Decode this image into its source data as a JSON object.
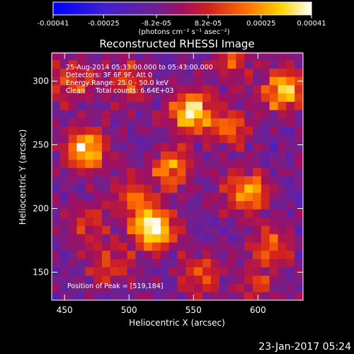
{
  "chart_data": {
    "type": "heatmap",
    "title": "Reconstructed RHESSI Image",
    "xlabel": "Heliocentric X (arcsec)",
    "ylabel": "Heliocentric Y (arcsec)",
    "xlim": [
      440,
      635
    ],
    "ylim": [
      128,
      322
    ],
    "x_ticks": [
      450,
      500,
      550,
      600
    ],
    "y_ticks": [
      150,
      200,
      250,
      300
    ],
    "colorbar": {
      "units": "(photons cm⁻² s⁻¹ asec⁻²)",
      "range": [
        -0.00041,
        0.00041
      ],
      "tick_values": [
        -0.00041,
        -0.00025,
        -8.2e-05,
        8.2e-05,
        0.00025,
        0.00041
      ],
      "tick_labels": [
        "-0.00041",
        "-0.00025",
        "-8.2e-05",
        "8.2e-05",
        "0.00025",
        "0.00041"
      ]
    },
    "annotations": [
      "25-Aug-2014 05:33:00.000 to 05:43:00.000",
      "Detectors: 3F 6F 9F, Att 0",
      "Energy Range: 25.0 - 50.0 keV",
      "Clean     Total counts: 6.64E+03"
    ],
    "peak_label": "Position of Peak = [519,184]",
    "sources": [
      {
        "x": 519,
        "y": 184,
        "value": 0.00041
      },
      {
        "x": 548,
        "y": 276,
        "value": 0.00039
      },
      {
        "x": 466,
        "y": 246,
        "value": 0.00036
      },
      {
        "x": 620,
        "y": 292,
        "value": 0.00034
      },
      {
        "x": 592,
        "y": 214,
        "value": 0.0003
      },
      {
        "x": 533,
        "y": 232,
        "value": 0.00022
      },
      {
        "x": 578,
        "y": 264,
        "value": 0.0002
      },
      {
        "x": 503,
        "y": 208,
        "value": 0.00018
      },
      {
        "x": 612,
        "y": 170,
        "value": 0.00016
      },
      {
        "x": 455,
        "y": 300,
        "value": 0.00016
      },
      {
        "x": 555,
        "y": 150,
        "value": 0.00014
      },
      {
        "x": 485,
        "y": 155,
        "value": 0.00014
      },
      {
        "x": 500,
        "y": 300,
        "value": 0.00014
      },
      {
        "x": 580,
        "y": 315,
        "value": 0.00012
      },
      {
        "x": 470,
        "y": 190,
        "value": 0.0001
      },
      {
        "x": 600,
        "y": 140,
        "value": 0.0001
      }
    ]
  },
  "footer": {
    "timestamp": "23-Jan-2017 05:24"
  }
}
